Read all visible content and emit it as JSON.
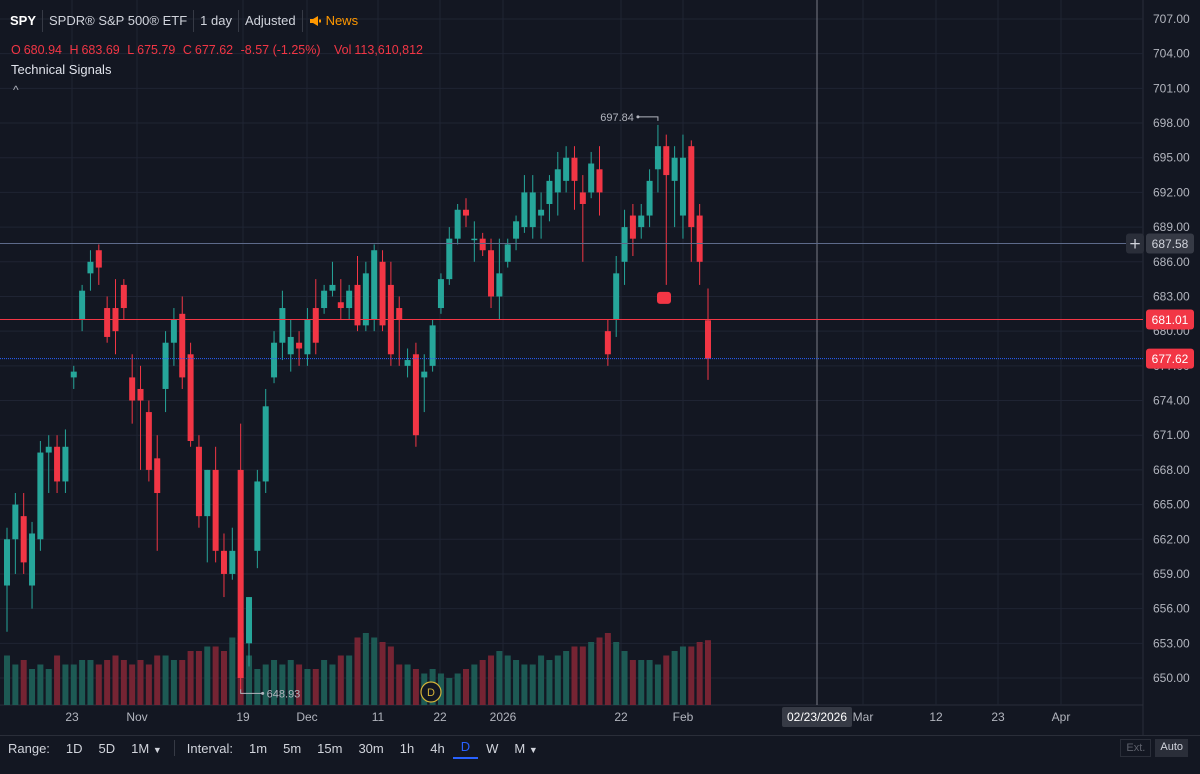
{
  "header": {
    "symbol": "SPY",
    "name": "SPDR® S&P 500® ETF",
    "interval": "1 day",
    "adjustment": "Adjusted",
    "news_label": "News"
  },
  "ohlc": {
    "o_label": "O",
    "o": "680.94",
    "h_label": "H",
    "h": "683.69",
    "l_label": "L",
    "l": "675.79",
    "c_label": "C",
    "c": "677.62",
    "change": "-8.57 (-1.25%)",
    "vol_label": "Vol",
    "vol": "113,610,812"
  },
  "indicator_label": "Technical Signals",
  "collapse_glyph": "^",
  "toolbar": {
    "range_label": "Range:",
    "ranges": [
      "1D",
      "5D",
      "1M"
    ],
    "interval_label": "Interval:",
    "intervals": [
      "1m",
      "5m",
      "15m",
      "30m",
      "1h",
      "4h",
      "D",
      "W",
      "M"
    ],
    "active_interval": "D",
    "ext_label": "Ext.",
    "auto_label": "Auto"
  },
  "colors": {
    "up": "#26a69a",
    "down": "#f23645",
    "background": "#131722",
    "grid": "#1f2433",
    "last_price": "#f23645",
    "blue_line": "#2962ff"
  },
  "chart_data": {
    "type": "candlestick",
    "symbol": "SPY",
    "y_ticks": [
      650,
      653,
      656,
      659,
      662,
      665,
      668,
      671,
      674,
      677,
      680,
      683,
      686,
      689,
      692,
      695,
      698,
      701,
      704,
      707
    ],
    "ylim": [
      647.5,
      708.5
    ],
    "x_tick_labels": [
      "23",
      "Nov",
      "19",
      "Dec",
      "11",
      "22",
      "2026",
      "22",
      "Feb",
      "02/23/2026",
      "Mar",
      "12",
      "23",
      "Apr"
    ],
    "price_labels": [
      {
        "label": "687.58",
        "value": 687.58,
        "kind": "horizontal-line"
      },
      {
        "label": "681.01",
        "value": 681.01,
        "kind": "red-line"
      },
      {
        "label": "677.62",
        "value": 677.62,
        "kind": "last-price"
      }
    ],
    "annotations": [
      {
        "label": "697.84",
        "value": 697.84,
        "kind": "period-high"
      },
      {
        "label": "648.93",
        "value": 648.93,
        "kind": "period-low"
      },
      {
        "label": "D",
        "kind": "dividend-marker"
      }
    ],
    "crosshair_date": "02/23/2026",
    "candles": [
      {
        "o": 658.0,
        "h": 663.0,
        "l": 654.0,
        "c": 662.0
      },
      {
        "o": 662.0,
        "h": 666.0,
        "l": 659.0,
        "c": 665.0
      },
      {
        "o": 664.0,
        "h": 666.0,
        "l": 659.0,
        "c": 660.0
      },
      {
        "o": 658.0,
        "h": 663.5,
        "l": 656.0,
        "c": 662.5
      },
      {
        "o": 662.0,
        "h": 670.5,
        "l": 661.0,
        "c": 669.5
      },
      {
        "o": 669.5,
        "h": 671.0,
        "l": 666.0,
        "c": 670.0
      },
      {
        "o": 670.0,
        "h": 671.0,
        "l": 666.0,
        "c": 667.0
      },
      {
        "o": 667.0,
        "h": 671.5,
        "l": 666.0,
        "c": 670.0
      },
      {
        "o": 676.0,
        "h": 677.0,
        "l": 675.0,
        "c": 676.5
      },
      {
        "o": 681.0,
        "h": 684.0,
        "l": 680.0,
        "c": 683.5
      },
      {
        "o": 685.0,
        "h": 687.0,
        "l": 683.5,
        "c": 686.0
      },
      {
        "o": 687.0,
        "h": 687.5,
        "l": 684.0,
        "c": 685.5
      },
      {
        "o": 682.0,
        "h": 683.0,
        "l": 679.0,
        "c": 679.5
      },
      {
        "o": 682.0,
        "h": 684.5,
        "l": 678.0,
        "c": 680.0
      },
      {
        "o": 684.0,
        "h": 684.5,
        "l": 681.0,
        "c": 682.0
      },
      {
        "o": 676.0,
        "h": 678.0,
        "l": 672.0,
        "c": 674.0
      },
      {
        "o": 675.0,
        "h": 677.0,
        "l": 668.0,
        "c": 674.0
      },
      {
        "o": 673.0,
        "h": 674.0,
        "l": 667.0,
        "c": 668.0
      },
      {
        "o": 669.0,
        "h": 671.0,
        "l": 661.0,
        "c": 666.0
      },
      {
        "o": 675.0,
        "h": 680.0,
        "l": 673.0,
        "c": 679.0
      },
      {
        "o": 679.0,
        "h": 682.0,
        "l": 677.0,
        "c": 681.0
      },
      {
        "o": 681.5,
        "h": 683.0,
        "l": 675.0,
        "c": 676.0
      },
      {
        "o": 678.0,
        "h": 679.0,
        "l": 670.0,
        "c": 670.5
      },
      {
        "o": 670.0,
        "h": 671.0,
        "l": 663.0,
        "c": 664.0
      },
      {
        "o": 664.0,
        "h": 668.0,
        "l": 660.0,
        "c": 668.0
      },
      {
        "o": 668.0,
        "h": 670.0,
        "l": 660.0,
        "c": 661.0
      },
      {
        "o": 661.0,
        "h": 662.5,
        "l": 657.0,
        "c": 659.0
      },
      {
        "o": 659.0,
        "h": 663.0,
        "l": 658.5,
        "c": 661.0
      },
      {
        "o": 668.0,
        "h": 672.0,
        "l": 649.0,
        "c": 650.0
      },
      {
        "o": 653.0,
        "h": 657.0,
        "l": 651.0,
        "c": 657.0
      },
      {
        "o": 661.0,
        "h": 668.0,
        "l": 659.5,
        "c": 667.0
      },
      {
        "o": 667.0,
        "h": 675.0,
        "l": 666.0,
        "c": 673.5
      },
      {
        "o": 676.0,
        "h": 680.0,
        "l": 675.5,
        "c": 679.0
      },
      {
        "o": 679.0,
        "h": 683.5,
        "l": 677.5,
        "c": 682.0
      },
      {
        "o": 678.0,
        "h": 681.0,
        "l": 676.5,
        "c": 679.5
      },
      {
        "o": 679.0,
        "h": 680.0,
        "l": 677.0,
        "c": 678.5
      },
      {
        "o": 678.0,
        "h": 682.0,
        "l": 677.0,
        "c": 681.0
      },
      {
        "o": 682.0,
        "h": 684.5,
        "l": 678.0,
        "c": 679.0
      },
      {
        "o": 682.0,
        "h": 684.0,
        "l": 681.5,
        "c": 683.5
      },
      {
        "o": 683.5,
        "h": 686.0,
        "l": 683.0,
        "c": 684.0
      },
      {
        "o": 682.5,
        "h": 684.5,
        "l": 681.0,
        "c": 682.0
      },
      {
        "o": 682.0,
        "h": 684.0,
        "l": 681.0,
        "c": 683.5
      },
      {
        "o": 684.0,
        "h": 686.5,
        "l": 680.0,
        "c": 680.5
      },
      {
        "o": 680.5,
        "h": 686.0,
        "l": 680.0,
        "c": 685.0
      },
      {
        "o": 681.0,
        "h": 687.5,
        "l": 680.0,
        "c": 687.0
      },
      {
        "o": 686.0,
        "h": 687.0,
        "l": 680.0,
        "c": 680.5
      },
      {
        "o": 684.0,
        "h": 686.0,
        "l": 677.0,
        "c": 678.0
      },
      {
        "o": 682.0,
        "h": 683.0,
        "l": 677.0,
        "c": 681.0
      },
      {
        "o": 677.0,
        "h": 678.5,
        "l": 676.0,
        "c": 677.5
      },
      {
        "o": 678.0,
        "h": 679.0,
        "l": 670.0,
        "c": 671.0
      },
      {
        "o": 676.0,
        "h": 678.0,
        "l": 673.0,
        "c": 676.5
      },
      {
        "o": 677.0,
        "h": 681.0,
        "l": 676.5,
        "c": 680.5
      },
      {
        "o": 682.0,
        "h": 685.0,
        "l": 681.5,
        "c": 684.5
      },
      {
        "o": 684.5,
        "h": 689.0,
        "l": 684.0,
        "c": 688.0
      },
      {
        "o": 688.0,
        "h": 691.0,
        "l": 687.5,
        "c": 690.5
      },
      {
        "o": 690.5,
        "h": 691.5,
        "l": 689.0,
        "c": 690.0
      },
      {
        "o": 688.0,
        "h": 689.5,
        "l": 686.0,
        "c": 688.0
      },
      {
        "o": 688.0,
        "h": 688.5,
        "l": 686.5,
        "c": 687.0
      },
      {
        "o": 687.0,
        "h": 688.0,
        "l": 682.0,
        "c": 683.0
      },
      {
        "o": 683.0,
        "h": 688.0,
        "l": 681.0,
        "c": 685.0
      },
      {
        "o": 686.0,
        "h": 688.0,
        "l": 685.5,
        "c": 687.5
      },
      {
        "o": 688.0,
        "h": 690.0,
        "l": 687.0,
        "c": 689.5
      },
      {
        "o": 689.0,
        "h": 693.5,
        "l": 688.5,
        "c": 692.0
      },
      {
        "o": 689.0,
        "h": 693.5,
        "l": 688.0,
        "c": 692.0
      },
      {
        "o": 690.0,
        "h": 692.0,
        "l": 688.0,
        "c": 690.5
      },
      {
        "o": 691.0,
        "h": 693.5,
        "l": 689.5,
        "c": 693.0
      },
      {
        "o": 692.0,
        "h": 695.5,
        "l": 690.0,
        "c": 694.0
      },
      {
        "o": 693.0,
        "h": 696.0,
        "l": 692.0,
        "c": 695.0
      },
      {
        "o": 695.0,
        "h": 696.0,
        "l": 690.5,
        "c": 693.0
      },
      {
        "o": 692.0,
        "h": 693.5,
        "l": 686.0,
        "c": 691.0
      },
      {
        "o": 692.0,
        "h": 695.5,
        "l": 691.5,
        "c": 694.5
      },
      {
        "o": 694.0,
        "h": 696.0,
        "l": 690.0,
        "c": 692.0
      },
      {
        "o": 680.0,
        "h": 681.0,
        "l": 677.0,
        "c": 678.0
      },
      {
        "o": 681.0,
        "h": 686.5,
        "l": 679.5,
        "c": 685.0
      },
      {
        "o": 686.0,
        "h": 690.5,
        "l": 684.0,
        "c": 689.0
      },
      {
        "o": 690.0,
        "h": 691.0,
        "l": 686.5,
        "c": 688.0
      },
      {
        "o": 689.0,
        "h": 691.0,
        "l": 688.0,
        "c": 690.0
      },
      {
        "o": 690.0,
        "h": 694.0,
        "l": 689.0,
        "c": 693.0
      },
      {
        "o": 694.0,
        "h": 697.84,
        "l": 692.0,
        "c": 696.0
      },
      {
        "o": 696.0,
        "h": 697.0,
        "l": 684.0,
        "c": 693.5
      },
      {
        "o": 693.0,
        "h": 696.0,
        "l": 689.0,
        "c": 695.0
      },
      {
        "o": 690.0,
        "h": 697.0,
        "l": 688.0,
        "c": 695.0
      },
      {
        "o": 696.0,
        "h": 696.5,
        "l": 686.0,
        "c": 689.0
      },
      {
        "o": 690.0,
        "h": 691.0,
        "l": 684.0,
        "c": 686.0
      },
      {
        "o": 680.94,
        "h": 683.69,
        "l": 675.79,
        "c": 677.62
      }
    ],
    "volume": [
      0.55,
      0.45,
      0.5,
      0.4,
      0.45,
      0.4,
      0.55,
      0.45,
      0.45,
      0.5,
      0.5,
      0.45,
      0.5,
      0.55,
      0.5,
      0.45,
      0.5,
      0.45,
      0.55,
      0.55,
      0.5,
      0.5,
      0.6,
      0.6,
      0.65,
      0.65,
      0.6,
      0.75,
      0.8,
      0.55,
      0.4,
      0.45,
      0.5,
      0.45,
      0.5,
      0.45,
      0.4,
      0.4,
      0.5,
      0.45,
      0.55,
      0.55,
      0.75,
      0.8,
      0.75,
      0.7,
      0.65,
      0.45,
      0.45,
      0.4,
      0.35,
      0.4,
      0.35,
      0.3,
      0.35,
      0.4,
      0.45,
      0.5,
      0.55,
      0.6,
      0.55,
      0.5,
      0.45,
      0.45,
      0.55,
      0.5,
      0.55,
      0.6,
      0.65,
      0.65,
      0.7,
      0.75,
      0.8,
      0.7,
      0.6,
      0.5,
      0.5,
      0.5,
      0.45,
      0.55,
      0.6,
      0.65,
      0.65,
      0.7,
      0.72
    ]
  }
}
